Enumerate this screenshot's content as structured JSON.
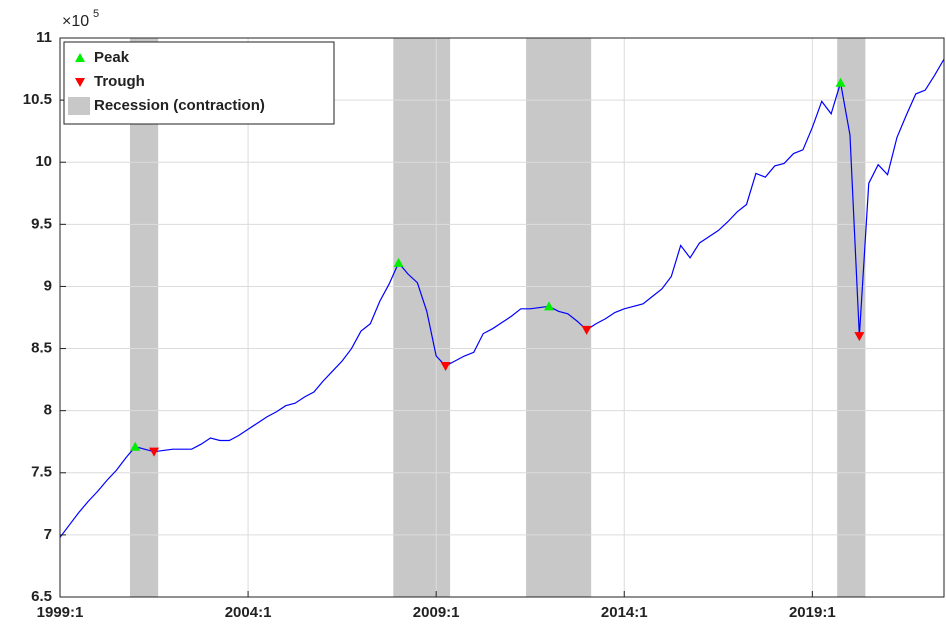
{
  "chart_data": {
    "type": "line",
    "y_multiplier": {
      "base": "×10",
      "exponent": "5"
    },
    "color": "#0000ff",
    "x": [
      1999,
      1999.25,
      1999.5,
      1999.75,
      2000,
      2000.25,
      2000.5,
      2000.75,
      2001,
      2001.25,
      2001.5,
      2001.75,
      2002,
      2002.25,
      2002.5,
      2002.75,
      2003,
      2003.25,
      2003.5,
      2003.75,
      2004,
      2004.25,
      2004.5,
      2004.75,
      2005,
      2005.25,
      2005.5,
      2005.75,
      2006,
      2006.25,
      2006.5,
      2006.75,
      2007,
      2007.25,
      2007.5,
      2007.75,
      2008,
      2008.25,
      2008.5,
      2008.75,
      2009,
      2009.25,
      2009.5,
      2009.75,
      2010,
      2010.25,
      2010.5,
      2010.75,
      2011,
      2011.25,
      2011.5,
      2011.75,
      2012,
      2012.25,
      2012.5,
      2012.75,
      2013,
      2013.25,
      2013.5,
      2013.75,
      2014,
      2014.25,
      2014.5,
      2014.75,
      2015,
      2015.25,
      2015.5,
      2015.75,
      2016,
      2016.25,
      2016.5,
      2016.75,
      2017,
      2017.25,
      2017.5,
      2017.75,
      2018,
      2018.25,
      2018.5,
      2018.75,
      2019,
      2019.25,
      2019.5,
      2019.75,
      2020,
      2020.25,
      2020.5,
      2020.75,
      2021,
      2021.25,
      2021.5,
      2021.75,
      2022,
      2022.25,
      2022.5
    ],
    "values": [
      6.98,
      7.08,
      7.18,
      7.27,
      7.35,
      7.44,
      7.52,
      7.62,
      7.71,
      7.69,
      7.67,
      7.68,
      7.69,
      7.69,
      7.69,
      7.73,
      7.78,
      7.76,
      7.76,
      7.8,
      7.85,
      7.9,
      7.95,
      7.99,
      8.04,
      8.06,
      8.11,
      8.15,
      8.24,
      8.32,
      8.4,
      8.5,
      8.64,
      8.7,
      8.88,
      9.02,
      9.19,
      9.1,
      9.03,
      8.8,
      8.44,
      8.36,
      8.4,
      8.44,
      8.47,
      8.62,
      8.66,
      8.71,
      8.76,
      8.82,
      8.82,
      8.83,
      8.84,
      8.8,
      8.78,
      8.72,
      8.65,
      8.7,
      8.74,
      8.79,
      8.82,
      8.84,
      8.86,
      8.92,
      8.98,
      9.08,
      9.33,
      9.23,
      9.35,
      9.4,
      9.45,
      9.52,
      9.6,
      9.66,
      9.91,
      9.88,
      9.97,
      9.99,
      10.07,
      10.1,
      10.28,
      10.49,
      10.39,
      10.64,
      10.22,
      8.6,
      9.83,
      9.98,
      9.9,
      10.2,
      10.38,
      10.55,
      10.58,
      10.7,
      10.83
    ],
    "markers": [
      {
        "name": "Peak",
        "color": "#00ee00",
        "shape": "up",
        "x": [
          2001,
          2008,
          2012,
          2019.75
        ],
        "values": [
          7.71,
          9.19,
          8.84,
          10.64
        ]
      },
      {
        "name": "Trough",
        "color": "#ff0000",
        "shape": "down",
        "x": [
          2001.5,
          2009.25,
          2013,
          2020.25
        ],
        "values": [
          7.67,
          8.36,
          8.65,
          8.6
        ]
      }
    ],
    "recessions": {
      "name": "Recession (contraction)",
      "color": "#c8c8c8",
      "ranges": [
        [
          2000.86,
          2001.61
        ],
        [
          2007.86,
          2009.37
        ],
        [
          2011.39,
          2013.12
        ],
        [
          2019.66,
          2020.41
        ]
      ]
    },
    "xlim": [
      1999,
      2022.5
    ],
    "xticks": [
      {
        "value": 1999,
        "label": "1999:1"
      },
      {
        "value": 2004,
        "label": "2004:1"
      },
      {
        "value": 2009,
        "label": "2009:1"
      },
      {
        "value": 2014,
        "label": "2014:1"
      },
      {
        "value": 2019,
        "label": "2019:1"
      }
    ],
    "ylim": [
      6.5,
      11
    ],
    "yticks": [
      6.5,
      7,
      7.5,
      8,
      8.5,
      9,
      9.5,
      10,
      10.5,
      11
    ],
    "grid": true,
    "legend": "upper-left"
  }
}
